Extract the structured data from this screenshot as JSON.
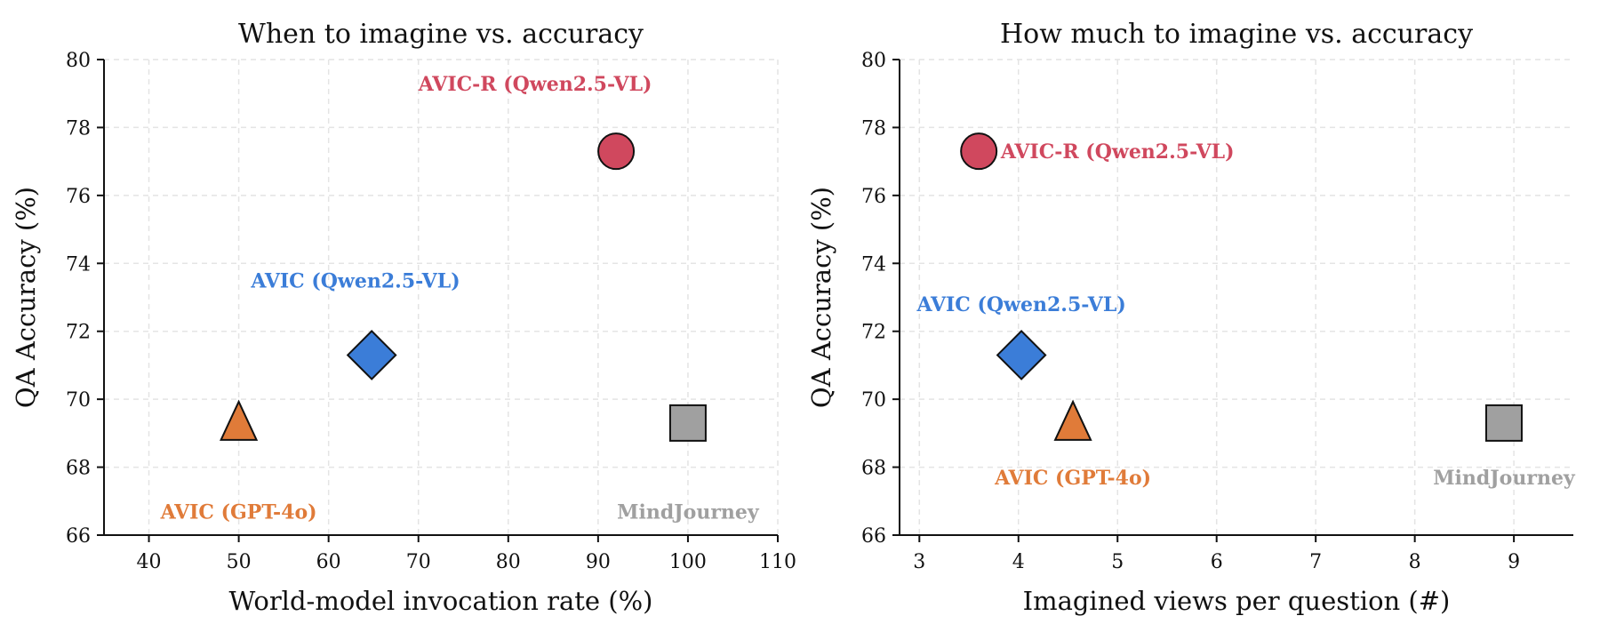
{
  "chart_data": [
    {
      "type": "scatter",
      "title": "When to imagine vs. accuracy",
      "xlabel": "World-model invocation rate (%)",
      "ylabel": "QA Accuracy (%)",
      "xlim": [
        35,
        110
      ],
      "ylim": [
        66,
        80
      ],
      "xticks": [
        40,
        50,
        60,
        70,
        80,
        90,
        100,
        110
      ],
      "yticks": [
        66,
        68,
        70,
        72,
        74,
        76,
        78,
        80
      ],
      "grid": true,
      "points": [
        {
          "label": "AVIC-R (Qwen2.5-VL)",
          "x": 92,
          "y": 77.3,
          "marker": "circle",
          "color": "#d0485e",
          "label_x": 83,
          "label_y": 79.3
        },
        {
          "label": "AVIC (Qwen2.5-VL)",
          "x": 64.8,
          "y": 71.3,
          "marker": "diamond",
          "color": "#3b7dd8",
          "label_x": 63,
          "label_y": 73.5
        },
        {
          "label": "AVIC (GPT-4o)",
          "x": 50,
          "y": 69.3,
          "marker": "triangle",
          "color": "#e07b39",
          "label_x": 50,
          "label_y": 66.7
        },
        {
          "label": "MindJourney",
          "x": 100,
          "y": 69.3,
          "marker": "square",
          "color": "#a0a0a0",
          "label_x": 100,
          "label_y": 66.7
        }
      ]
    },
    {
      "type": "scatter",
      "title": "How much to imagine vs. accuracy",
      "xlabel": "Imagined views per question (#)",
      "ylabel": "QA Accuracy (%)",
      "xlim": [
        2.8,
        9.6
      ],
      "ylim": [
        66,
        80
      ],
      "xticks": [
        3,
        4,
        5,
        6,
        7,
        8,
        9
      ],
      "yticks": [
        66,
        68,
        70,
        72,
        74,
        76,
        78,
        80
      ],
      "grid": true,
      "points": [
        {
          "label": "AVIC-R (Qwen2.5-VL)",
          "x": 3.6,
          "y": 77.3,
          "marker": "circle",
          "color": "#d0485e",
          "label_x": 5.0,
          "label_y": 77.3
        },
        {
          "label": "AVIC (Qwen2.5-VL)",
          "x": 4.03,
          "y": 71.3,
          "marker": "diamond",
          "color": "#3b7dd8",
          "label_x": 4.03,
          "label_y": 72.8
        },
        {
          "label": "AVIC (GPT-4o)",
          "x": 4.55,
          "y": 69.3,
          "marker": "triangle",
          "color": "#e07b39",
          "label_x": 4.55,
          "label_y": 67.7
        },
        {
          "label": "MindJourney",
          "x": 8.9,
          "y": 69.3,
          "marker": "square",
          "color": "#a0a0a0",
          "label_x": 8.9,
          "label_y": 67.7
        }
      ]
    }
  ]
}
